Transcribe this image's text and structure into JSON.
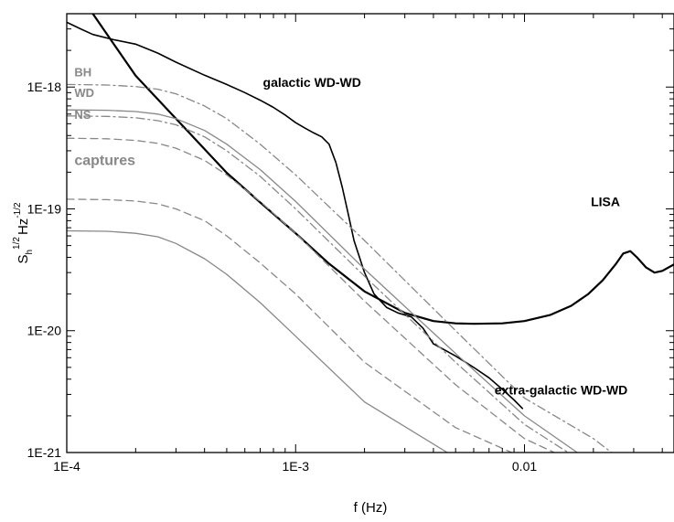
{
  "chart_data": {
    "type": "line",
    "xlabel": "f (Hz)",
    "ylabel": {
      "base": "S",
      "sub": "h",
      "sup": "1/2",
      "unit": "Hz",
      "unit_sup": "-1/2"
    },
    "x_scale": "log",
    "y_scale": "log",
    "xlim": [
      0.0001,
      0.045
    ],
    "ylim": [
      1e-21,
      4e-18
    ],
    "x_ticks": [
      {
        "value": 0.0001,
        "label": "1E-4"
      },
      {
        "value": 0.001,
        "label": "1E-3"
      },
      {
        "value": 0.01,
        "label": "0.01"
      }
    ],
    "y_ticks": [
      {
        "value": 1e-21,
        "label": "1E-21"
      },
      {
        "value": 1e-20,
        "label": "1E-20"
      },
      {
        "value": 1e-19,
        "label": "1E-19"
      },
      {
        "value": 1e-18,
        "label": "1E-18"
      }
    ],
    "grid": false,
    "annotations": [
      {
        "text": "galactic WD-WD",
        "x": 0.00072,
        "y": 1e-18,
        "color": "#000000",
        "style": "ann-black"
      },
      {
        "text": "LISA",
        "x": 0.0195,
        "y": 1.05e-19,
        "color": "#000000",
        "style": "ann-black"
      },
      {
        "text": "extra-galactic WD-WD",
        "x": 0.0074,
        "y": 3e-21,
        "color": "#000000",
        "style": "ann-black"
      },
      {
        "text": "BH",
        "x": 0.000108,
        "y": 1.22e-18,
        "color": "#888888",
        "style": "ann-grey"
      },
      {
        "text": "WD",
        "x": 0.000108,
        "y": 8.3e-19,
        "color": "#888888",
        "style": "ann-grey"
      },
      {
        "text": "NS",
        "x": 0.000108,
        "y": 5.5e-19,
        "color": "#888888",
        "style": "ann-grey"
      },
      {
        "text": "captures",
        "x": 0.000108,
        "y": 2.3e-19,
        "color": "#888888",
        "style": "ann-grey-lg"
      }
    ],
    "series": [
      {
        "color": "#000000",
        "dash": "solid",
        "width": 2.2,
        "x": [
          0.00013,
          0.0002,
          0.0003,
          0.0005,
          0.0007,
          0.001,
          0.0014,
          0.002,
          0.003,
          0.004,
          0.005,
          0.006,
          0.008,
          0.01,
          0.013,
          0.016,
          0.019,
          0.022,
          0.025,
          0.027,
          0.029,
          0.031,
          0.034,
          0.037,
          0.04,
          0.045
        ],
        "y": [
          4e-18,
          1.24e-18,
          5.5e-19,
          1.98e-19,
          1.13e-19,
          6.3e-20,
          3.55e-20,
          2.1e-20,
          1.4e-20,
          1.2e-20,
          1.15e-20,
          1.14e-20,
          1.15e-20,
          1.2e-20,
          1.35e-20,
          1.6e-20,
          2e-20,
          2.6e-20,
          3.5e-20,
          4.3e-20,
          4.5e-20,
          4e-20,
          3.3e-20,
          3e-20,
          3.1e-20,
          3.5e-20
        ]
      },
      {
        "color": "#000000",
        "dash": "solid",
        "width": 1.6,
        "x": [
          0.0001,
          0.000115,
          0.00013,
          0.00016,
          0.0002,
          0.00025,
          0.0003,
          0.0004,
          0.0005,
          0.0006,
          0.0007,
          0.0008,
          0.0009,
          0.001,
          0.0011,
          0.0012,
          0.0013,
          0.0014,
          0.0015,
          0.0016,
          0.0017,
          0.0018,
          0.002,
          0.0022,
          0.0025,
          0.0028,
          0.0032,
          0.0036,
          0.004
        ],
        "y": [
          3.4e-18,
          3e-18,
          2.7e-18,
          2.45e-18,
          2.25e-18,
          1.9e-18,
          1.6e-18,
          1.25e-18,
          1.05e-18,
          9e-19,
          7.8e-19,
          6.8e-19,
          5.9e-19,
          5.1e-19,
          4.6e-19,
          4.2e-19,
          3.9e-19,
          3.4e-19,
          2.4e-19,
          1.5e-19,
          9e-20,
          5.5e-20,
          3e-20,
          2e-20,
          1.55e-20,
          1.4e-20,
          1.3e-20,
          1.05e-20,
          7.8e-21
        ]
      },
      {
        "color": "#000000",
        "dash": "solid",
        "width": 1.6,
        "x": [
          0.004,
          0.005,
          0.006,
          0.007,
          0.008,
          0.009,
          0.0098
        ],
        "y": [
          7.8e-21,
          6.2e-21,
          5e-21,
          4.1e-21,
          3.3e-21,
          2.7e-21,
          2.3e-21
        ]
      },
      {
        "color": "#888888",
        "dash": "dashdot",
        "width": 1.3,
        "x": [
          0.0001,
          0.00015,
          0.0002,
          0.00025,
          0.0003,
          0.0004,
          0.0005,
          0.0007,
          0.001,
          0.002,
          0.005,
          0.01,
          0.02,
          0.024
        ],
        "y": [
          1.05e-18,
          1.04e-18,
          1.01e-18,
          9.6e-19,
          8.8e-19,
          7e-19,
          5.5e-19,
          3.4e-19,
          1.9e-19,
          5.5e-20,
          1e-20,
          2.8e-21,
          1.3e-21,
          1e-21
        ]
      },
      {
        "color": "#888888",
        "dash": "solid",
        "width": 1.3,
        "x": [
          0.0001,
          0.00015,
          0.0002,
          0.00025,
          0.0003,
          0.0004,
          0.0005,
          0.0007,
          0.001,
          0.002,
          0.005,
          0.01,
          0.017
        ],
        "y": [
          6.5e-19,
          6.45e-19,
          6.3e-19,
          6e-19,
          5.5e-19,
          4.4e-19,
          3.4e-19,
          2.1e-19,
          1.15e-19,
          3.2e-20,
          6.5e-21,
          2e-21,
          1e-21
        ]
      },
      {
        "color": "#888888",
        "dash": "dashdot",
        "width": 1.3,
        "x": [
          0.0001,
          0.00015,
          0.0002,
          0.00025,
          0.0003,
          0.0004,
          0.0005,
          0.0007,
          0.001,
          0.002,
          0.005,
          0.01,
          0.0155
        ],
        "y": [
          5.8e-19,
          5.75e-19,
          5.6e-19,
          5.3e-19,
          4.9e-19,
          3.9e-19,
          3e-19,
          1.85e-19,
          1e-19,
          2.8e-20,
          5.5e-21,
          1.7e-21,
          1e-21
        ]
      },
      {
        "color": "#888888",
        "dash": "dashed",
        "width": 1.3,
        "x": [
          0.0001,
          0.00015,
          0.0002,
          0.00025,
          0.0003,
          0.0004,
          0.0005,
          0.0007,
          0.001,
          0.002,
          0.005,
          0.01,
          0.0135
        ],
        "y": [
          3.8e-19,
          3.76e-19,
          3.65e-19,
          3.45e-19,
          3.15e-19,
          2.5e-19,
          1.9e-19,
          1.15e-19,
          6.3e-20,
          1.75e-20,
          3.6e-21,
          1.3e-21,
          1e-21
        ]
      },
      {
        "color": "#888888",
        "dash": "dashed",
        "width": 1.3,
        "x": [
          0.0001,
          0.00015,
          0.0002,
          0.00025,
          0.0003,
          0.0004,
          0.0005,
          0.0007,
          0.001,
          0.002,
          0.005,
          0.0088
        ],
        "y": [
          1.2e-19,
          1.19e-19,
          1.16e-19,
          1.1e-19,
          1e-19,
          8e-20,
          6e-20,
          3.6e-20,
          2e-20,
          5.5e-21,
          1.6e-21,
          1e-21
        ]
      },
      {
        "color": "#888888",
        "dash": "solid",
        "width": 1.3,
        "x": [
          0.0001,
          0.00015,
          0.0002,
          0.00025,
          0.0003,
          0.0004,
          0.0005,
          0.0007,
          0.001,
          0.002,
          0.0046
        ],
        "y": [
          6.6e-20,
          6.55e-20,
          6.3e-20,
          5.9e-20,
          5.2e-20,
          3.9e-20,
          2.9e-20,
          1.7e-20,
          9e-21,
          2.6e-21,
          1e-21
        ]
      }
    ]
  }
}
